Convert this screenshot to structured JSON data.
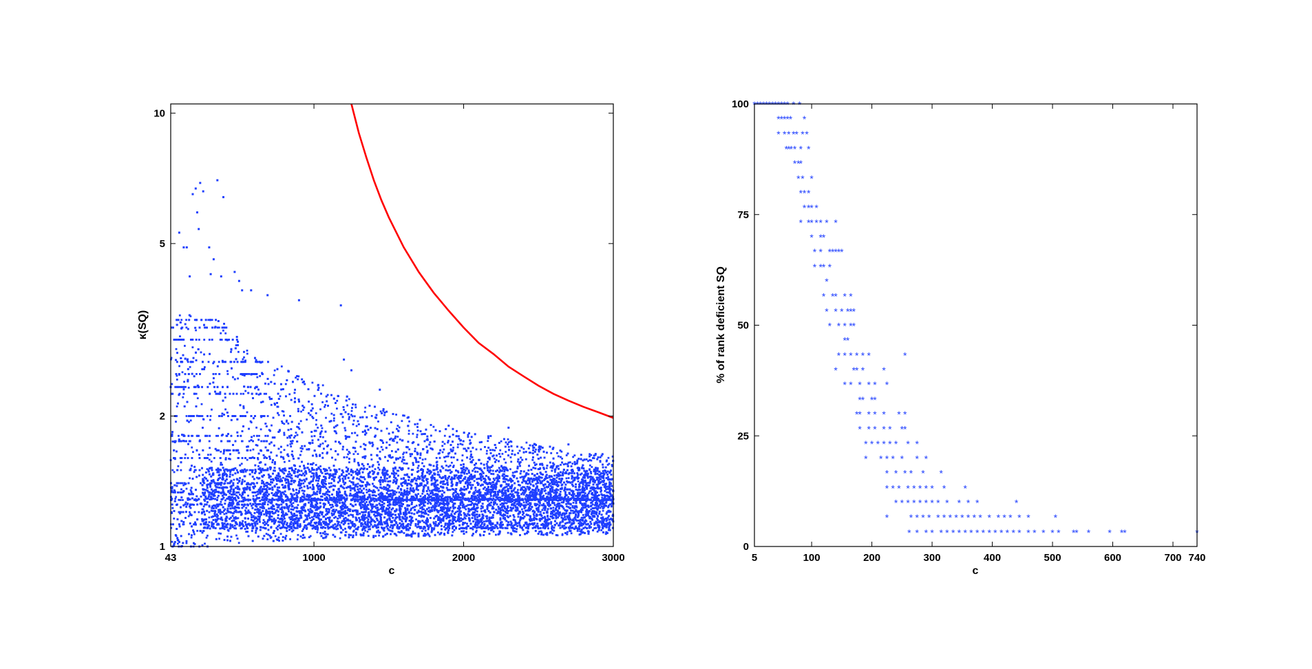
{
  "colors": {
    "background": "#ffffff",
    "scatter": "#1f3fff",
    "curve": "#ff0000",
    "axes": "#000000"
  },
  "chart_data": [
    {
      "type": "scatter",
      "xlabel": "c",
      "ylabel": "κ(SQ)",
      "xlim": [
        43,
        3000
      ],
      "ylim": [
        1,
        10.5
      ],
      "yscale": "log",
      "grid": false,
      "x_ticks": [
        43,
        1000,
        2000,
        3000
      ],
      "y_ticks": [
        1,
        2,
        5,
        10
      ],
      "marker": "dot",
      "curve": {
        "type": "line",
        "color": "#ff0000",
        "points": [
          [
            1250,
            10.5
          ],
          [
            1300,
            9.0
          ],
          [
            1350,
            7.9
          ],
          [
            1400,
            7.0
          ],
          [
            1450,
            6.3
          ],
          [
            1500,
            5.75
          ],
          [
            1600,
            4.9
          ],
          [
            1700,
            4.3
          ],
          [
            1800,
            3.85
          ],
          [
            1900,
            3.5
          ],
          [
            2000,
            3.2
          ],
          [
            2100,
            2.95
          ],
          [
            2200,
            2.78
          ],
          [
            2300,
            2.6
          ],
          [
            2400,
            2.47
          ],
          [
            2500,
            2.35
          ],
          [
            2600,
            2.25
          ],
          [
            2700,
            2.17
          ],
          [
            2800,
            2.1
          ],
          [
            2900,
            2.04
          ],
          [
            3000,
            1.98
          ]
        ]
      },
      "outliers": [
        [
          100,
          5.3
        ],
        [
          130,
          4.9
        ],
        [
          150,
          4.9
        ],
        [
          170,
          4.2
        ],
        [
          190,
          6.5
        ],
        [
          210,
          6.7
        ],
        [
          240,
          6.9
        ],
        [
          260,
          6.6
        ],
        [
          220,
          5.9
        ],
        [
          230,
          5.4
        ],
        [
          300,
          4.9
        ],
        [
          330,
          4.6
        ],
        [
          355,
          7.0
        ],
        [
          310,
          4.25
        ],
        [
          380,
          4.2
        ],
        [
          395,
          6.4
        ],
        [
          470,
          4.3
        ],
        [
          500,
          4.1
        ],
        [
          520,
          3.9
        ],
        [
          580,
          3.9
        ],
        [
          690,
          3.8
        ],
        [
          900,
          3.7
        ],
        [
          1180,
          3.6
        ],
        [
          1200,
          2.7
        ],
        [
          1250,
          2.55
        ],
        [
          1440,
          2.3
        ],
        [
          1900,
          1.9
        ],
        [
          2300,
          1.88
        ],
        [
          2700,
          1.72
        ]
      ],
      "levels": [
        1.0,
        1.125,
        1.2,
        1.25,
        1.333,
        1.4,
        1.5,
        1.6,
        1.667,
        1.75,
        1.8,
        2.0,
        2.25,
        2.333,
        2.5,
        2.667,
        3.0,
        3.2,
        3.333,
        3.5
      ],
      "cloud": [
        {
          "x": 43,
          "lo": 1.0,
          "hi": 3.4
        },
        {
          "x": 300,
          "lo": 1.0,
          "hi": 3.5
        },
        {
          "x": 600,
          "lo": 1.02,
          "hi": 2.8
        },
        {
          "x": 1000,
          "lo": 1.04,
          "hi": 2.4
        },
        {
          "x": 1500,
          "lo": 1.05,
          "hi": 2.05
        },
        {
          "x": 2000,
          "lo": 1.06,
          "hi": 1.85
        },
        {
          "x": 2500,
          "lo": 1.06,
          "hi": 1.72
        },
        {
          "x": 3000,
          "lo": 1.06,
          "hi": 1.62
        }
      ]
    },
    {
      "type": "scatter",
      "xlabel": "c",
      "ylabel": "% of rank deficient SQ",
      "xlim": [
        5,
        740
      ],
      "ylim": [
        0,
        100
      ],
      "grid": false,
      "x_ticks": [
        5,
        100,
        200,
        300,
        400,
        500,
        600,
        700,
        740
      ],
      "y_ticks": [
        0,
        25,
        50,
        75,
        100
      ],
      "marker": "*",
      "points": [
        [
          5,
          100
        ],
        [
          10,
          100
        ],
        [
          15,
          100
        ],
        [
          20,
          100
        ],
        [
          25,
          100
        ],
        [
          30,
          100
        ],
        [
          35,
          100
        ],
        [
          40,
          100
        ],
        [
          45,
          100
        ],
        [
          50,
          100
        ],
        [
          55,
          100
        ],
        [
          60,
          100
        ],
        [
          70,
          100
        ],
        [
          80,
          100
        ],
        [
          45,
          96.7
        ],
        [
          50,
          96.7
        ],
        [
          55,
          96.7
        ],
        [
          60,
          96.7
        ],
        [
          65,
          96.7
        ],
        [
          88,
          96.7
        ],
        [
          45,
          93.3
        ],
        [
          55,
          93.3
        ],
        [
          62,
          93.3
        ],
        [
          70,
          93.3
        ],
        [
          75,
          93.3
        ],
        [
          85,
          93.3
        ],
        [
          92,
          93.3
        ],
        [
          58,
          90
        ],
        [
          62,
          90
        ],
        [
          66,
          90
        ],
        [
          72,
          90
        ],
        [
          82,
          90
        ],
        [
          95,
          90
        ],
        [
          72,
          86.7
        ],
        [
          78,
          86.7
        ],
        [
          82,
          86.7
        ],
        [
          78,
          83.3
        ],
        [
          85,
          83.3
        ],
        [
          100,
          83.3
        ],
        [
          82,
          80
        ],
        [
          88,
          80
        ],
        [
          95,
          80
        ],
        [
          88,
          76.7
        ],
        [
          95,
          76.7
        ],
        [
          100,
          76.7
        ],
        [
          108,
          76.7
        ],
        [
          82,
          73.3
        ],
        [
          95,
          73.3
        ],
        [
          100,
          73.3
        ],
        [
          108,
          73.3
        ],
        [
          115,
          73.3
        ],
        [
          125,
          73.3
        ],
        [
          140,
          73.3
        ],
        [
          100,
          70
        ],
        [
          115,
          70
        ],
        [
          120,
          70
        ],
        [
          105,
          66.7
        ],
        [
          115,
          66.7
        ],
        [
          130,
          66.7
        ],
        [
          135,
          66.7
        ],
        [
          140,
          66.7
        ],
        [
          145,
          66.7
        ],
        [
          150,
          66.7
        ],
        [
          105,
          63.3
        ],
        [
          115,
          63.3
        ],
        [
          120,
          63.3
        ],
        [
          130,
          63.3
        ],
        [
          125,
          60
        ],
        [
          120,
          56.7
        ],
        [
          135,
          56.7
        ],
        [
          140,
          56.7
        ],
        [
          155,
          56.7
        ],
        [
          165,
          56.7
        ],
        [
          125,
          53.3
        ],
        [
          140,
          53.3
        ],
        [
          150,
          53.3
        ],
        [
          160,
          53.3
        ],
        [
          165,
          53.3
        ],
        [
          170,
          53.3
        ],
        [
          130,
          50
        ],
        [
          145,
          50
        ],
        [
          155,
          50
        ],
        [
          165,
          50
        ],
        [
          170,
          50
        ],
        [
          155,
          46.7
        ],
        [
          160,
          46.7
        ],
        [
          145,
          43.3
        ],
        [
          155,
          43.3
        ],
        [
          165,
          43.3
        ],
        [
          175,
          43.3
        ],
        [
          185,
          43.3
        ],
        [
          195,
          43.3
        ],
        [
          255,
          43.3
        ],
        [
          140,
          40
        ],
        [
          170,
          40
        ],
        [
          175,
          40
        ],
        [
          185,
          40
        ],
        [
          220,
          40
        ],
        [
          155,
          36.7
        ],
        [
          165,
          36.7
        ],
        [
          180,
          36.7
        ],
        [
          195,
          36.7
        ],
        [
          205,
          36.7
        ],
        [
          225,
          36.7
        ],
        [
          180,
          33.3
        ],
        [
          185,
          33.3
        ],
        [
          200,
          33.3
        ],
        [
          205,
          33.3
        ],
        [
          175,
          30
        ],
        [
          180,
          30
        ],
        [
          195,
          30
        ],
        [
          205,
          30
        ],
        [
          220,
          30
        ],
        [
          245,
          30
        ],
        [
          255,
          30
        ],
        [
          180,
          26.7
        ],
        [
          195,
          26.7
        ],
        [
          205,
          26.7
        ],
        [
          220,
          26.7
        ],
        [
          230,
          26.7
        ],
        [
          250,
          26.7
        ],
        [
          255,
          26.7
        ],
        [
          190,
          23.3
        ],
        [
          200,
          23.3
        ],
        [
          210,
          23.3
        ],
        [
          220,
          23.3
        ],
        [
          230,
          23.3
        ],
        [
          240,
          23.3
        ],
        [
          260,
          23.3
        ],
        [
          275,
          23.3
        ],
        [
          190,
          20
        ],
        [
          215,
          20
        ],
        [
          225,
          20
        ],
        [
          235,
          20
        ],
        [
          250,
          20
        ],
        [
          275,
          20
        ],
        [
          290,
          20
        ],
        [
          225,
          16.7
        ],
        [
          240,
          16.7
        ],
        [
          255,
          16.7
        ],
        [
          265,
          16.7
        ],
        [
          285,
          16.7
        ],
        [
          315,
          16.7
        ],
        [
          225,
          13.3
        ],
        [
          235,
          13.3
        ],
        [
          245,
          13.3
        ],
        [
          260,
          13.3
        ],
        [
          270,
          13.3
        ],
        [
          280,
          13.3
        ],
        [
          290,
          13.3
        ],
        [
          300,
          13.3
        ],
        [
          320,
          13.3
        ],
        [
          355,
          13.3
        ],
        [
          240,
          10
        ],
        [
          250,
          10
        ],
        [
          260,
          10
        ],
        [
          270,
          10
        ],
        [
          280,
          10
        ],
        [
          290,
          10
        ],
        [
          300,
          10
        ],
        [
          310,
          10
        ],
        [
          325,
          10
        ],
        [
          345,
          10
        ],
        [
          360,
          10
        ],
        [
          375,
          10
        ],
        [
          440,
          10
        ],
        [
          225,
          6.7
        ],
        [
          265,
          6.7
        ],
        [
          275,
          6.7
        ],
        [
          285,
          6.7
        ],
        [
          295,
          6.7
        ],
        [
          310,
          6.7
        ],
        [
          320,
          6.7
        ],
        [
          330,
          6.7
        ],
        [
          340,
          6.7
        ],
        [
          350,
          6.7
        ],
        [
          360,
          6.7
        ],
        [
          370,
          6.7
        ],
        [
          380,
          6.7
        ],
        [
          395,
          6.7
        ],
        [
          410,
          6.7
        ],
        [
          420,
          6.7
        ],
        [
          430,
          6.7
        ],
        [
          445,
          6.7
        ],
        [
          460,
          6.7
        ],
        [
          505,
          6.7
        ],
        [
          262,
          3.3
        ],
        [
          275,
          3.3
        ],
        [
          290,
          3.3
        ],
        [
          300,
          3.3
        ],
        [
          315,
          3.3
        ],
        [
          325,
          3.3
        ],
        [
          335,
          3.3
        ],
        [
          345,
          3.3
        ],
        [
          355,
          3.3
        ],
        [
          365,
          3.3
        ],
        [
          375,
          3.3
        ],
        [
          385,
          3.3
        ],
        [
          395,
          3.3
        ],
        [
          405,
          3.3
        ],
        [
          415,
          3.3
        ],
        [
          425,
          3.3
        ],
        [
          435,
          3.3
        ],
        [
          445,
          3.3
        ],
        [
          460,
          3.3
        ],
        [
          470,
          3.3
        ],
        [
          485,
          3.3
        ],
        [
          500,
          3.3
        ],
        [
          510,
          3.3
        ],
        [
          535,
          3.3
        ],
        [
          540,
          3.3
        ],
        [
          560,
          3.3
        ],
        [
          595,
          3.3
        ],
        [
          615,
          3.3
        ],
        [
          620,
          3.3
        ],
        [
          740,
          3.3
        ]
      ]
    }
  ]
}
